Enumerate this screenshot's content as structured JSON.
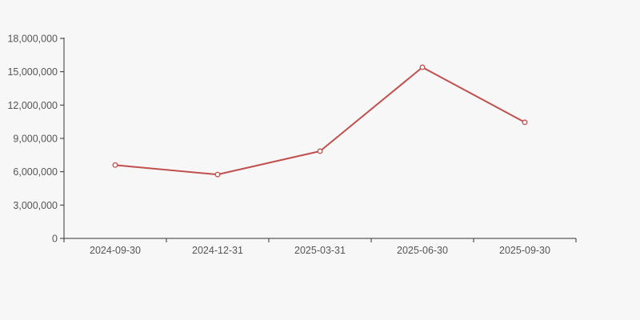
{
  "page": {
    "background_color": "#f7f7f7"
  },
  "chart_data": {
    "type": "line",
    "title": "",
    "xlabel": "",
    "ylabel": "",
    "categories": [
      "2024-09-30",
      "2024-12-31",
      "2025-03-31",
      "2025-06-30",
      "2025-09-30"
    ],
    "series": [
      {
        "name": "",
        "color": "#c0504d",
        "marker": "open-circle",
        "marker_fill": "#ffffff",
        "values": [
          6600000,
          5750000,
          7850000,
          15400000,
          10450000
        ]
      }
    ],
    "ylim": [
      0,
      18000000
    ],
    "ytick_interval": 3000000,
    "ytick_labels": [
      "0",
      "3,000,000",
      "6,000,000",
      "9,000,000",
      "12,000,000",
      "15,000,000",
      "18,000,000"
    ],
    "grid": false,
    "legend_position": "none",
    "axis_color": "#333333",
    "tick_label_color": "#555555"
  }
}
